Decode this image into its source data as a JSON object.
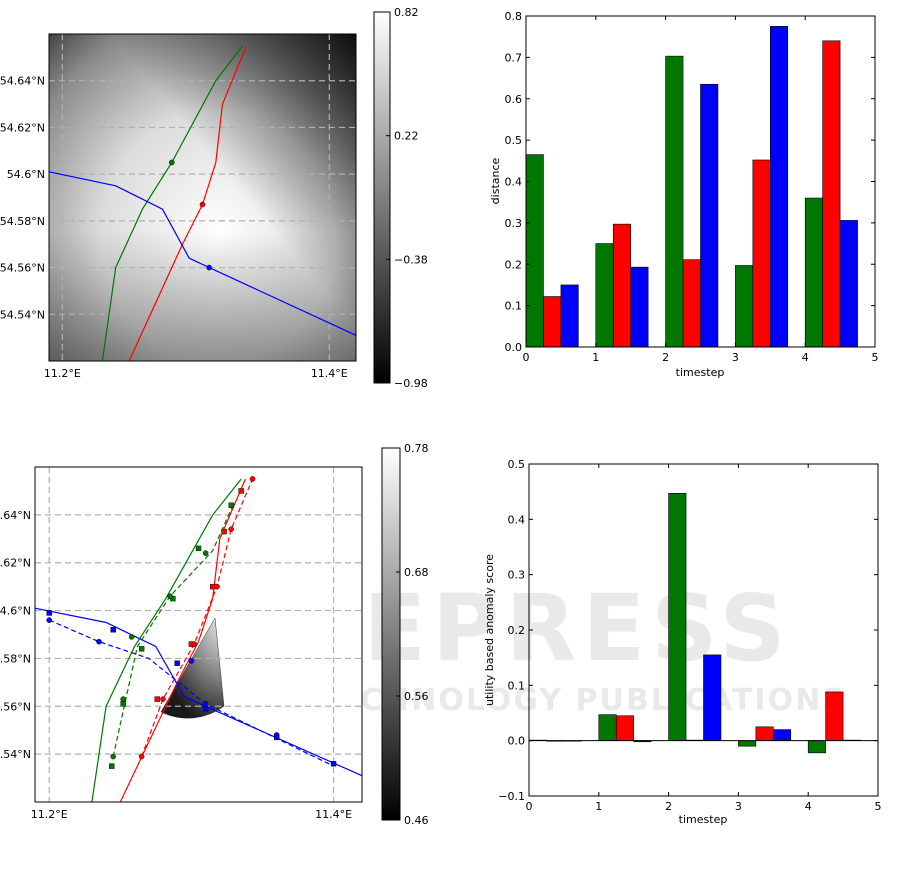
{
  "colors": {
    "green": "#007700",
    "red": "#ff0000",
    "blue": "#0000ff",
    "grid": "#b0b0b0"
  },
  "watermark": {
    "line1": "SCITEPRESS",
    "line2": "SCIENCE AND TECHNOLOGY PUBLICATIONS"
  },
  "chart_data": [
    {
      "id": "map-top",
      "type": "map",
      "xlim": [
        11.19,
        11.42
      ],
      "ylim": [
        54.52,
        54.66
      ],
      "xticks": [
        {
          "v": 11.2,
          "label": "11.2°E"
        },
        {
          "v": 11.4,
          "label": "11.4°E"
        }
      ],
      "yticks": [
        {
          "v": 54.54,
          "label": "54.54°N"
        },
        {
          "v": 54.56,
          "label": "54.56°N"
        },
        {
          "v": 54.58,
          "label": "54.58°N"
        },
        {
          "v": 54.6,
          "label": "54.6°N"
        },
        {
          "v": 54.62,
          "label": "54.62°N"
        },
        {
          "v": 54.64,
          "label": "54.64°N"
        }
      ],
      "colorbar": {
        "min": -0.98,
        "max": 0.82,
        "ticks": [
          "0.82",
          "0.22",
          "−0.38",
          "−0.98"
        ]
      },
      "tracks": [
        {
          "color": "green",
          "points": [
            [
              11.23,
              54.52
            ],
            [
              11.24,
              54.56
            ],
            [
              11.26,
              54.585
            ],
            [
              11.282,
              54.605
            ],
            [
              11.315,
              54.64
            ],
            [
              11.335,
              54.655
            ]
          ]
        },
        {
          "color": "red",
          "points": [
            [
              11.25,
              54.52
            ],
            [
              11.27,
              54.545
            ],
            [
              11.29,
              54.57
            ],
            [
              11.305,
              54.587
            ],
            [
              11.315,
              54.605
            ],
            [
              11.32,
              54.63
            ],
            [
              11.338,
              54.655
            ]
          ]
        },
        {
          "color": "blue",
          "points": [
            [
              11.19,
              54.601
            ],
            [
              11.24,
              54.595
            ],
            [
              11.275,
              54.585
            ],
            [
              11.295,
              54.564
            ],
            [
              11.31,
              54.56
            ],
            [
              11.42,
              54.531
            ]
          ]
        }
      ],
      "markers": [
        {
          "color": "green",
          "shape": "circle",
          "x": 11.282,
          "y": 54.605
        },
        {
          "color": "red",
          "shape": "circle",
          "x": 11.305,
          "y": 54.587
        },
        {
          "color": "blue",
          "shape": "circle",
          "x": 11.31,
          "y": 54.56
        }
      ]
    },
    {
      "id": "bar-distance",
      "type": "bar",
      "xlabel": "timestep",
      "ylabel": "distance",
      "xlim": [
        0,
        5
      ],
      "ylim": [
        0,
        0.8
      ],
      "xticks": [
        0,
        1,
        2,
        3,
        4,
        5
      ],
      "yticks": [
        0.0,
        0.1,
        0.2,
        0.3,
        0.4,
        0.5,
        0.6,
        0.7,
        0.8
      ],
      "yticklabels": [
        "0.0",
        "0.1",
        "0.2",
        "0.3",
        "0.4",
        "0.5",
        "0.6",
        "0.7",
        "0.8"
      ],
      "series": [
        {
          "color": "green",
          "values": [
            0.465,
            0.25,
            0.703,
            0.197,
            0.36
          ]
        },
        {
          "color": "red",
          "values": [
            0.122,
            0.297,
            0.211,
            0.452,
            0.74
          ]
        },
        {
          "color": "blue",
          "values": [
            0.15,
            0.193,
            0.635,
            0.775,
            0.306
          ]
        }
      ]
    },
    {
      "id": "map-bottom",
      "type": "map",
      "xlim": [
        11.19,
        11.42
      ],
      "ylim": [
        54.52,
        54.66
      ],
      "xticks": [
        {
          "v": 11.2,
          "label": "11.2°E"
        },
        {
          "v": 11.4,
          "label": "11.4°E"
        }
      ],
      "yticks": [
        {
          "v": 54.54,
          "label": "54.54°N"
        },
        {
          "v": 54.56,
          "label": "54.56°N"
        },
        {
          "v": 54.58,
          "label": "54.58°N"
        },
        {
          "v": 54.6,
          "label": "54.6°N"
        },
        {
          "v": 54.62,
          "label": "54.62°N"
        },
        {
          "v": 54.64,
          "label": "54.64°N"
        }
      ],
      "colorbar": {
        "min": 0.46,
        "max": 0.78,
        "ticks": [
          "0.78",
          "0.68",
          "0.56",
          "0.46"
        ]
      },
      "tracks": [
        {
          "color": "green",
          "style": "solid",
          "points": [
            [
              11.23,
              54.52
            ],
            [
              11.24,
              54.56
            ],
            [
              11.26,
              54.585
            ],
            [
              11.282,
              54.605
            ],
            [
              11.315,
              54.64
            ],
            [
              11.335,
              54.655
            ]
          ]
        },
        {
          "color": "green",
          "style": "dashed",
          "points": [
            [
              11.245,
              54.539
            ],
            [
              11.262,
              54.585
            ],
            [
              11.285,
              54.606
            ],
            [
              11.315,
              54.625
            ],
            [
              11.33,
              54.645
            ]
          ]
        },
        {
          "color": "red",
          "style": "solid",
          "points": [
            [
              11.25,
              54.52
            ],
            [
              11.27,
              54.545
            ],
            [
              11.29,
              54.57
            ],
            [
              11.305,
              54.587
            ],
            [
              11.315,
              54.605
            ],
            [
              11.32,
              54.63
            ],
            [
              11.338,
              54.655
            ]
          ]
        },
        {
          "color": "red",
          "style": "dashed",
          "points": [
            [
              11.265,
              54.539
            ],
            [
              11.28,
              54.563
            ],
            [
              11.302,
              54.586
            ],
            [
              11.318,
              54.61
            ],
            [
              11.328,
              54.634
            ],
            [
              11.343,
              54.655
            ]
          ]
        },
        {
          "color": "blue",
          "style": "solid",
          "points": [
            [
              11.19,
              54.601
            ],
            [
              11.24,
              54.595
            ],
            [
              11.275,
              54.585
            ],
            [
              11.295,
              54.564
            ],
            [
              11.31,
              54.56
            ],
            [
              11.42,
              54.531
            ]
          ]
        },
        {
          "color": "blue",
          "style": "dashed",
          "points": [
            [
              11.2,
              54.596
            ],
            [
              11.235,
              54.587
            ],
            [
              11.27,
              54.58
            ],
            [
              11.31,
              54.561
            ],
            [
              11.4,
              54.535
            ]
          ]
        }
      ],
      "markers": [
        {
          "color": "green",
          "shape": "square",
          "x": 11.244,
          "y": 54.535
        },
        {
          "color": "green",
          "shape": "square",
          "x": 11.252,
          "y": 54.561
        },
        {
          "color": "green",
          "shape": "square",
          "x": 11.265,
          "y": 54.584
        },
        {
          "color": "green",
          "shape": "square",
          "x": 11.287,
          "y": 54.605
        },
        {
          "color": "green",
          "shape": "square",
          "x": 11.305,
          "y": 54.626
        },
        {
          "color": "green",
          "shape": "square",
          "x": 11.328,
          "y": 54.644
        },
        {
          "color": "green",
          "shape": "circle",
          "x": 11.245,
          "y": 54.539
        },
        {
          "color": "green",
          "shape": "circle",
          "x": 11.252,
          "y": 54.563
        },
        {
          "color": "green",
          "shape": "circle",
          "x": 11.258,
          "y": 54.589
        },
        {
          "color": "green",
          "shape": "circle",
          "x": 11.285,
          "y": 54.606
        },
        {
          "color": "green",
          "shape": "circle",
          "x": 11.31,
          "y": 54.624
        },
        {
          "color": "red",
          "shape": "square",
          "x": 11.276,
          "y": 54.563
        },
        {
          "color": "red",
          "shape": "square",
          "x": 11.3,
          "y": 54.586
        },
        {
          "color": "red",
          "shape": "square",
          "x": 11.315,
          "y": 54.61
        },
        {
          "color": "red",
          "shape": "square",
          "x": 11.323,
          "y": 54.633
        },
        {
          "color": "red",
          "shape": "square",
          "x": 11.335,
          "y": 54.65
        },
        {
          "color": "red",
          "shape": "circle",
          "x": 11.265,
          "y": 54.539
        },
        {
          "color": "red",
          "shape": "circle",
          "x": 11.28,
          "y": 54.563
        },
        {
          "color": "red",
          "shape": "circle",
          "x": 11.302,
          "y": 54.586
        },
        {
          "color": "red",
          "shape": "circle",
          "x": 11.318,
          "y": 54.61
        },
        {
          "color": "red",
          "shape": "circle",
          "x": 11.328,
          "y": 54.634
        },
        {
          "color": "red",
          "shape": "circle",
          "x": 11.343,
          "y": 54.655
        },
        {
          "color": "blue",
          "shape": "square",
          "x": 11.2,
          "y": 54.599
        },
        {
          "color": "blue",
          "shape": "square",
          "x": 11.245,
          "y": 54.592
        },
        {
          "color": "blue",
          "shape": "square",
          "x": 11.29,
          "y": 54.578
        },
        {
          "color": "blue",
          "shape": "square",
          "x": 11.31,
          "y": 54.559
        },
        {
          "color": "blue",
          "shape": "square",
          "x": 11.36,
          "y": 54.547
        },
        {
          "color": "blue",
          "shape": "square",
          "x": 11.4,
          "y": 54.536
        },
        {
          "color": "blue",
          "shape": "circle",
          "x": 11.2,
          "y": 54.596
        },
        {
          "color": "blue",
          "shape": "circle",
          "x": 11.235,
          "y": 54.587
        },
        {
          "color": "blue",
          "shape": "circle",
          "x": 11.3,
          "y": 54.579
        },
        {
          "color": "blue",
          "shape": "circle",
          "x": 11.31,
          "y": 54.561
        },
        {
          "color": "blue",
          "shape": "circle",
          "x": 11.36,
          "y": 54.548
        }
      ]
    },
    {
      "id": "bar-anomaly",
      "type": "bar",
      "xlabel": "timestep",
      "ylabel": "utility based anomaly score",
      "xlim": [
        0,
        5
      ],
      "ylim": [
        -0.1,
        0.5
      ],
      "xticks": [
        0,
        1,
        2,
        3,
        4,
        5
      ],
      "yticks": [
        -0.1,
        0.0,
        0.1,
        0.2,
        0.3,
        0.4,
        0.5
      ],
      "yticklabels": [
        "−0.1",
        "0.0",
        "0.1",
        "0.2",
        "0.3",
        "0.4",
        "0.5"
      ],
      "series": [
        {
          "color": "green",
          "values": [
            0.001,
            0.047,
            0.447,
            -0.01,
            -0.022
          ]
        },
        {
          "color": "red",
          "values": [
            -0.001,
            0.045,
            0.001,
            0.025,
            0.088
          ]
        },
        {
          "color": "blue",
          "values": [
            0.0,
            -0.002,
            0.155,
            0.02,
            0.001
          ]
        }
      ]
    }
  ]
}
